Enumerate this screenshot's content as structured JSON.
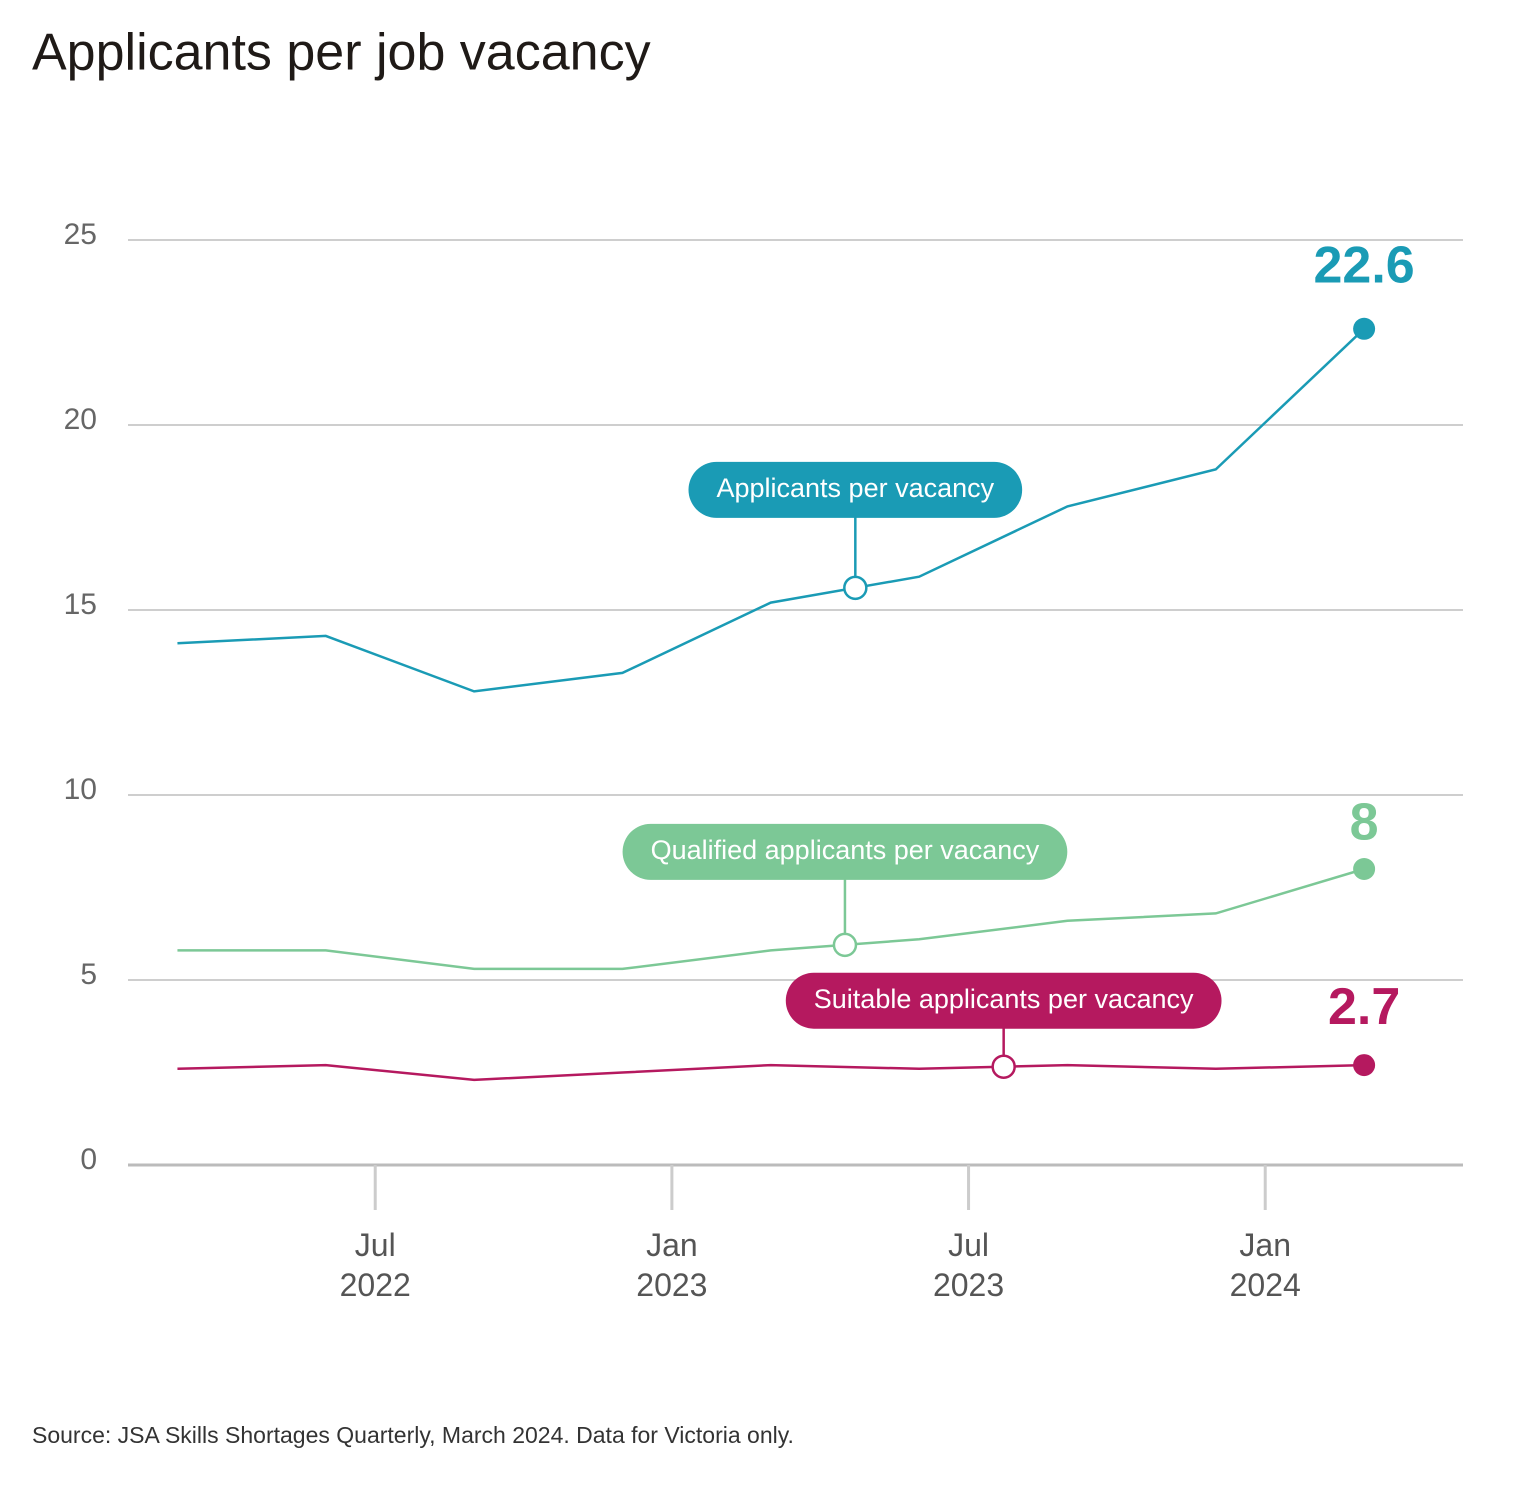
{
  "chart_data": {
    "type": "line",
    "title": "Applicants per job vacancy",
    "source": "Source: JSA Skills Shortages Quarterly, March 2024. Data for Victoria only.",
    "x": [
      "2022-03",
      "2022-06",
      "2022-09",
      "2022-12",
      "2023-03",
      "2023-06",
      "2023-09",
      "2023-12",
      "2024-03"
    ],
    "xlim": [
      "2022-02",
      "2024-05"
    ],
    "xticks": [
      {
        "value": "2022-07",
        "label": "Jul 2022"
      },
      {
        "value": "2023-01",
        "label": "Jan 2023"
      },
      {
        "value": "2023-07",
        "label": "Jul 2023"
      },
      {
        "value": "2024-01",
        "label": "Jan 2024"
      }
    ],
    "ylim": [
      0,
      25
    ],
    "yticks": [
      0,
      5,
      10,
      15,
      20,
      25
    ],
    "grid": true,
    "series": [
      {
        "name": "Applicants per vacancy",
        "color": "#1a9bb5",
        "values": [
          14.1,
          14.3,
          12.8,
          13.3,
          15.2,
          15.9,
          17.8,
          18.8,
          22.6
        ]
      },
      {
        "name": "Qualified applicants per vacancy",
        "color": "#7cc896",
        "values": [
          5.8,
          5.8,
          5.3,
          5.3,
          5.8,
          6.1,
          6.6,
          6.8,
          8
        ]
      },
      {
        "name": "Suitable applicants per vacancy",
        "color": "#b5195f",
        "values": [
          2.6,
          2.7,
          2.3,
          2.5,
          2.7,
          2.6,
          2.7,
          2.6,
          2.7
        ]
      }
    ]
  }
}
